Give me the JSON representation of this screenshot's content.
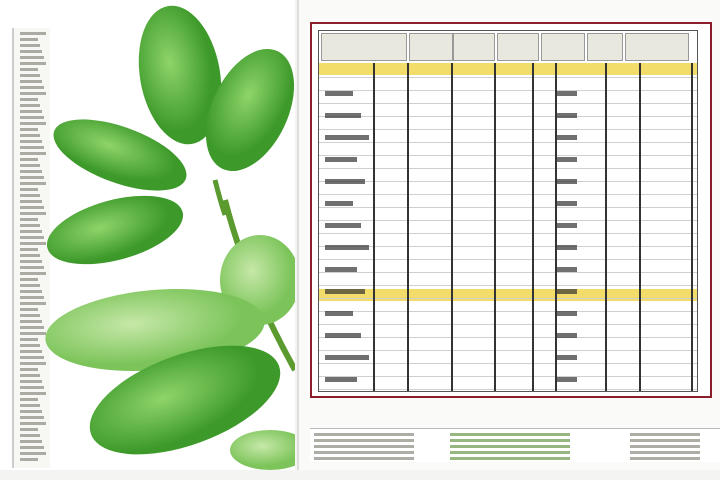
{
  "colors": {
    "frame": "#8b1e2a",
    "header_row": "#f2dc6a",
    "leaf": "#4caf3a",
    "leaf_dark": "#2e7d22",
    "stem": "#5a9a2e"
  },
  "illustration": {
    "subject": "plant-leaves-icon"
  }
}
